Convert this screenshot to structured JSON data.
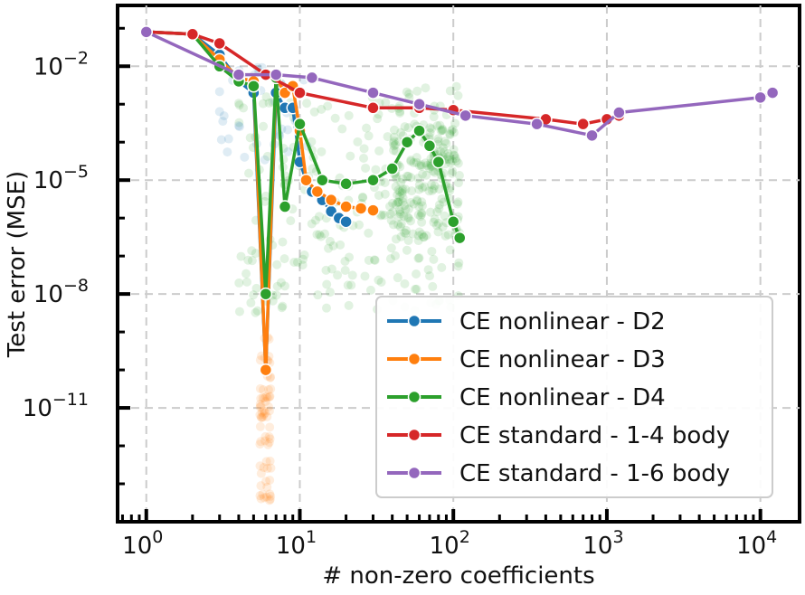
{
  "chart_data": {
    "type": "line",
    "xscale": "log",
    "yscale": "log",
    "title": "",
    "xlabel": "# non-zero coefficients",
    "ylabel": "Test error (MSE)",
    "xlim": [
      0.65,
      18000
    ],
    "ylim": [
      1e-14,
      0.4
    ],
    "x_ticks": [
      {
        "value": 1,
        "base": "10",
        "exp": "0"
      },
      {
        "value": 10,
        "base": "10",
        "exp": "1"
      },
      {
        "value": 100,
        "base": "10",
        "exp": "2"
      },
      {
        "value": 1000,
        "base": "10",
        "exp": "3"
      },
      {
        "value": 10000,
        "base": "10",
        "exp": "4"
      }
    ],
    "y_ticks": [
      {
        "value": 0.01,
        "base": "10",
        "exp": "−2"
      },
      {
        "value": 1e-05,
        "base": "10",
        "exp": "−5"
      },
      {
        "value": 1e-08,
        "base": "10",
        "exp": "−8"
      },
      {
        "value": 1e-11,
        "base": "10",
        "exp": "−11"
      }
    ],
    "grid": true,
    "legend_position": "bottom-right",
    "series": [
      {
        "name": "CE nonlinear - D2",
        "color": "#1f77b4",
        "x": [
          1,
          2,
          3,
          4,
          5,
          6,
          7,
          8,
          9,
          10,
          11,
          12,
          14,
          16,
          18,
          20
        ],
        "y": [
          0.08,
          0.07,
          0.02,
          0.004,
          0.002,
          1e-10,
          0.002,
          0.0008,
          0.0008,
          3e-05,
          1e-05,
          5e-06,
          3e-06,
          1.5e-06,
          1e-06,
          8e-07
        ]
      },
      {
        "name": "CE nonlinear - D3",
        "color": "#ff7f0e",
        "x": [
          1,
          2,
          3,
          4,
          5,
          6,
          7,
          8,
          9,
          10,
          11,
          13,
          16,
          20,
          25,
          30
        ],
        "y": [
          0.08,
          0.07,
          0.015,
          0.005,
          0.004,
          1e-10,
          0.005,
          0.002,
          0.003,
          0.0002,
          1e-05,
          5e-06,
          3e-06,
          2e-06,
          1.8e-06,
          1.6e-06
        ]
      },
      {
        "name": "CE nonlinear - D4",
        "color": "#2ca02c",
        "x": [
          1,
          2,
          3,
          4,
          5,
          6,
          7,
          8,
          10,
          14,
          20,
          30,
          40,
          50,
          60,
          70,
          80,
          100,
          110
        ],
        "y": [
          0.08,
          0.07,
          0.01,
          0.004,
          0.003,
          1e-08,
          0.005,
          2e-06,
          0.0003,
          1e-05,
          8e-06,
          1e-05,
          2e-05,
          0.0001,
          0.0002,
          8e-05,
          3e-05,
          8e-07,
          3e-07
        ]
      },
      {
        "name": "CE standard - 1-4 body",
        "color": "#d62728",
        "x": [
          1,
          2,
          3,
          6,
          10,
          30,
          60,
          100,
          400,
          700,
          1000,
          1200
        ],
        "y": [
          0.08,
          0.07,
          0.04,
          0.006,
          0.002,
          0.0008,
          0.0008,
          0.0007,
          0.0004,
          0.0003,
          0.0004,
          0.0005
        ]
      },
      {
        "name": "CE standard - 1-6 body",
        "color": "#9467bd",
        "x": [
          1,
          4,
          7,
          12,
          30,
          60,
          120,
          350,
          800,
          1200,
          10000,
          12000
        ],
        "y": [
          0.08,
          0.006,
          0.006,
          0.005,
          0.002,
          0.001,
          0.0005,
          0.0003,
          0.00015,
          0.0006,
          0.0015,
          0.002
        ]
      }
    ]
  }
}
